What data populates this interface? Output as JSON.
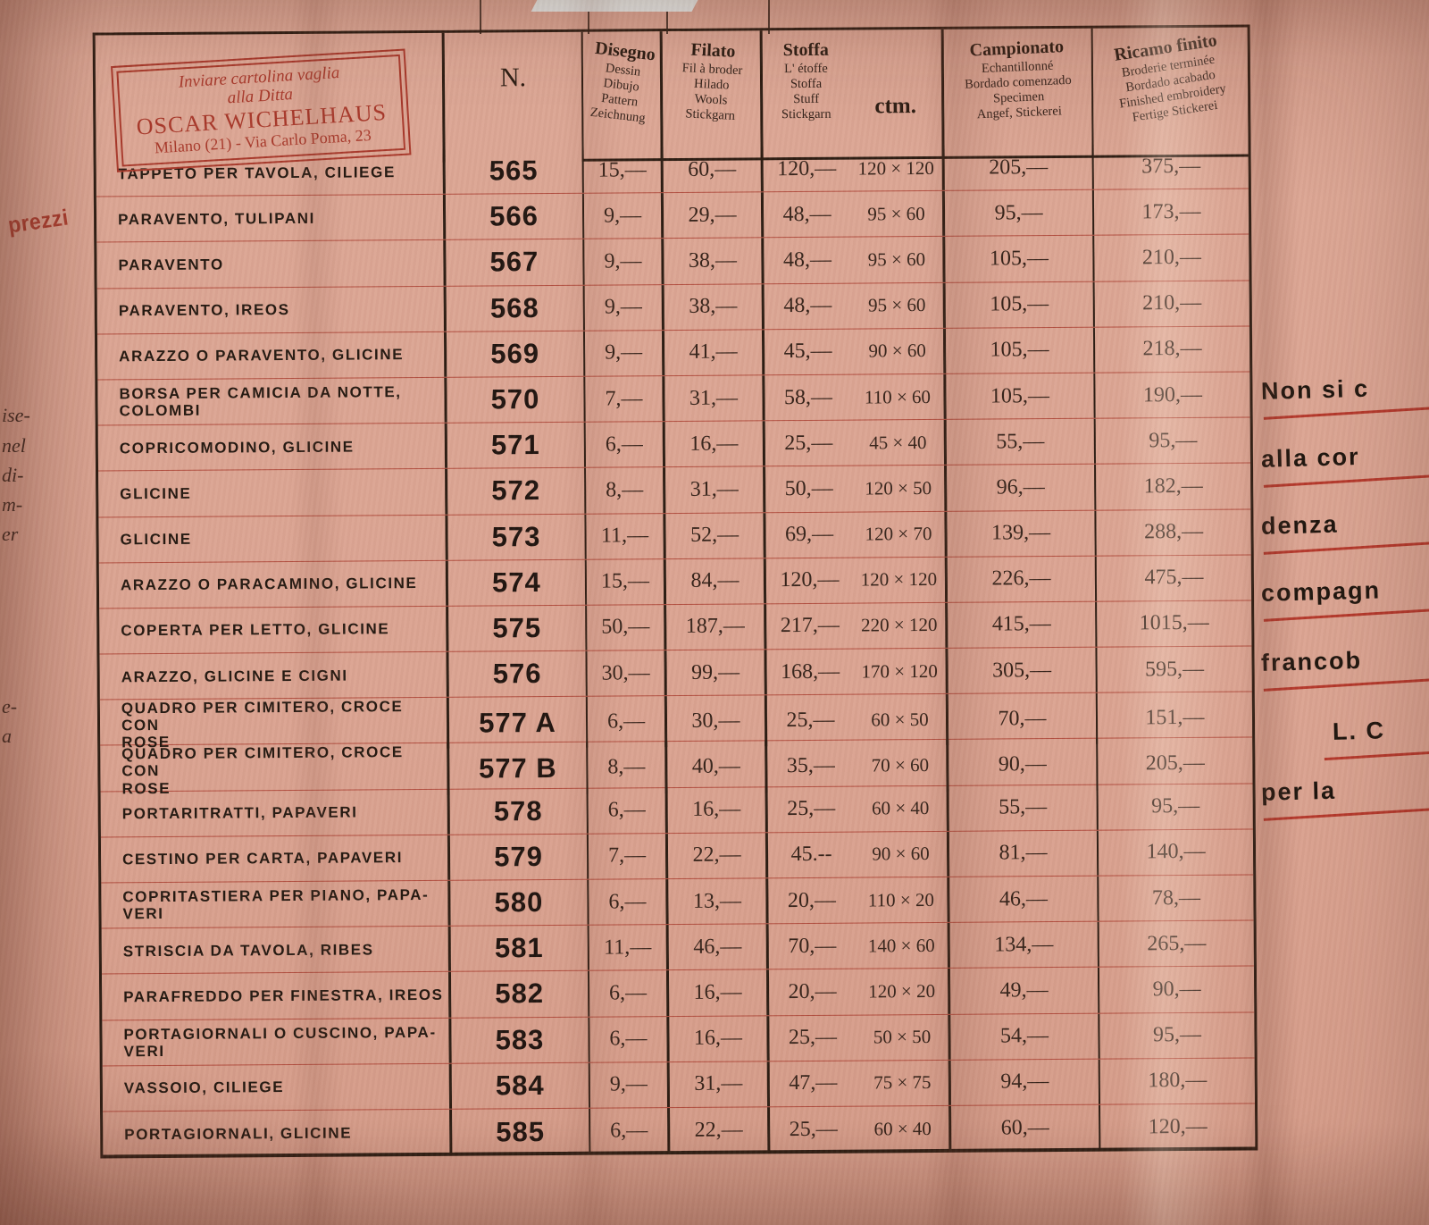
{
  "colors": {
    "paper": "#dca795",
    "ink": "#2c1d13",
    "red_accent": "#a8392b",
    "row_rule_red": "#b5392c"
  },
  "page": {
    "left_margin": {
      "vertical_label": "prezzi",
      "fragments": [
        "ise-",
        "nel",
        "di-",
        "m-",
        "er",
        "e-",
        "a"
      ]
    },
    "sender_box": {
      "line1": "Inviare cartolina vaglia",
      "line2": "alla Ditta",
      "company": "OSCAR WICHELHAUS",
      "address": "Milano (21) - Via Carlo Poma, 23"
    },
    "right_column_fragments": [
      {
        "text": "Non si c"
      },
      {
        "text": "alla cor"
      },
      {
        "text": "denza"
      },
      {
        "text": "compagn"
      },
      {
        "text": "francob"
      },
      {
        "text": "L. C"
      },
      {
        "text": "per la"
      }
    ]
  },
  "table": {
    "headers": {
      "n": "N.",
      "disegno": {
        "title": "Disegno",
        "subs": "Dessin\nDibujo\nPattern\nZeichnung"
      },
      "filato": {
        "title": "Filato",
        "subs": "Fil à broder\nHilado\nWools\nStickgarn"
      },
      "stoffa": {
        "title": "Stoffa",
        "subs": "L' étoffe\nStoffa\nStuff\nStickgarn"
      },
      "ctm": "ctm.",
      "campionato": {
        "title": "Campionato",
        "subs": "Echantillonné\nBordado comenzado\nSpecimen\nAngef, Stickerei"
      },
      "ricamo": {
        "title": "Ricamo finito",
        "subs": "Broderie terminée\nBordado acabado\nFinished embroidery\nFertige Stickerei"
      }
    },
    "rows": [
      {
        "name": "TAPPETO PER TAVOLA, CILIEGE",
        "n": "565",
        "disegno": "15,—",
        "filato": "60,—",
        "stoffa": "120,—",
        "ctm": "120 × 120",
        "campionato": "205,—",
        "ricamo": "375,—"
      },
      {
        "name": "PARAVENTO, TULIPANI",
        "n": "566",
        "disegno": "9,—",
        "filato": "29,—",
        "stoffa": "48,—",
        "ctm": "95 × 60",
        "campionato": "95,—",
        "ricamo": "173,—"
      },
      {
        "name": "PARAVENTO",
        "n": "567",
        "disegno": "9,—",
        "filato": "38,—",
        "stoffa": "48,—",
        "ctm": "95 × 60",
        "campionato": "105,—",
        "ricamo": "210,—"
      },
      {
        "name": "PARAVENTO, IREOS",
        "n": "568",
        "disegno": "9,—",
        "filato": "38,—",
        "stoffa": "48,—",
        "ctm": "95 × 60",
        "campionato": "105,—",
        "ricamo": "210,—"
      },
      {
        "name": "ARAZZO O PARAVENTO, GLICINE",
        "n": "569",
        "disegno": "9,—",
        "filato": "41,—",
        "stoffa": "45,—",
        "ctm": "90 × 60",
        "campionato": "105,—",
        "ricamo": "218,—"
      },
      {
        "name": "BORSA PER CAMICIA DA NOTTE,\nCOLOMBI",
        "n": "570",
        "disegno": "7,—",
        "filato": "31,—",
        "stoffa": "58,—",
        "ctm": "110 × 60",
        "campionato": "105,—",
        "ricamo": "190,—"
      },
      {
        "name": "COPRICOMODINO, GLICINE",
        "n": "571",
        "disegno": "6,—",
        "filato": "16,—",
        "stoffa": "25,—",
        "ctm": "45 × 40",
        "campionato": "55,—",
        "ricamo": "95,—"
      },
      {
        "name": "GLICINE",
        "n": "572",
        "disegno": "8,—",
        "filato": "31,—",
        "stoffa": "50,—",
        "ctm": "120 × 50",
        "campionato": "96,—",
        "ricamo": "182,—"
      },
      {
        "name": "GLICINE",
        "n": "573",
        "disegno": "11,—",
        "filato": "52,—",
        "stoffa": "69,—",
        "ctm": "120 × 70",
        "campionato": "139,—",
        "ricamo": "288,—"
      },
      {
        "name": "ARAZZO O PARACAMINO, GLICINE",
        "n": "574",
        "disegno": "15,—",
        "filato": "84,—",
        "stoffa": "120,—",
        "ctm": "120 × 120",
        "campionato": "226,—",
        "ricamo": "475,—"
      },
      {
        "name": "COPERTA PER LETTO, GLICINE",
        "n": "575",
        "disegno": "50,—",
        "filato": "187,—",
        "stoffa": "217,—",
        "ctm": "220 × 120",
        "campionato": "415,—",
        "ricamo": "1015,—"
      },
      {
        "name": "ARAZZO, GLICINE E CIGNI",
        "n": "576",
        "disegno": "30,—",
        "filato": "99,—",
        "stoffa": "168,—",
        "ctm": "170 × 120",
        "campionato": "305,—",
        "ricamo": "595,—"
      },
      {
        "name": "QUADRO PER CIMITERO, CROCE CON\nROSE",
        "n": "577 A",
        "disegno": "6,—",
        "filato": "30,—",
        "stoffa": "25,—",
        "ctm": "60 × 50",
        "campionato": "70,—",
        "ricamo": "151,—"
      },
      {
        "name": "QUADRO PER CIMITERO, CROCE CON\nROSE",
        "n": "577 B",
        "disegno": "8,—",
        "filato": "40,—",
        "stoffa": "35,—",
        "ctm": "70 × 60",
        "campionato": "90,—",
        "ricamo": "205,—"
      },
      {
        "name": "PORTARITRATTI, PAPAVERI",
        "n": "578",
        "disegno": "6,—",
        "filato": "16,—",
        "stoffa": "25,—",
        "ctm": "60 × 40",
        "campionato": "55,—",
        "ricamo": "95,—"
      },
      {
        "name": "CESTINO PER CARTA, PAPAVERI",
        "n": "579",
        "disegno": "7,—",
        "filato": "22,—",
        "stoffa": "45.--",
        "ctm": "90 × 60",
        "campionato": "81,—",
        "ricamo": "140,—"
      },
      {
        "name": "COPRITASTIERA PER PIANO, PAPA-\nVERI",
        "n": "580",
        "disegno": "6,—",
        "filato": "13,—",
        "stoffa": "20,—",
        "ctm": "110 × 20",
        "campionato": "46,—",
        "ricamo": "78,—"
      },
      {
        "name": "STRISCIA DA TAVOLA, RIBES",
        "n": "581",
        "disegno": "11,—",
        "filato": "46,—",
        "stoffa": "70,—",
        "ctm": "140 × 60",
        "campionato": "134,—",
        "ricamo": "265,—"
      },
      {
        "name": "PARAFREDDO PER FINESTRA, IREOS",
        "n": "582",
        "disegno": "6,—",
        "filato": "16,—",
        "stoffa": "20,—",
        "ctm": "120 × 20",
        "campionato": "49,—",
        "ricamo": "90,—"
      },
      {
        "name": "PORTAGIORNALI O CUSCINO, PAPA-\nVERI",
        "n": "583",
        "disegno": "6,—",
        "filato": "16,—",
        "stoffa": "25,—",
        "ctm": "50 × 50",
        "campionato": "54,—",
        "ricamo": "95,—"
      },
      {
        "name": "VASSOIO, CILIEGE",
        "n": "584",
        "disegno": "9,—",
        "filato": "31,—",
        "stoffa": "47,—",
        "ctm": "75 × 75",
        "campionato": "94,—",
        "ricamo": "180,—"
      },
      {
        "name": "PORTAGIORNALI, GLICINE",
        "n": "585",
        "disegno": "6,—",
        "filato": "22,—",
        "stoffa": "25,—",
        "ctm": "60 × 40",
        "campionato": "60,—",
        "ricamo": "120,—"
      }
    ]
  }
}
